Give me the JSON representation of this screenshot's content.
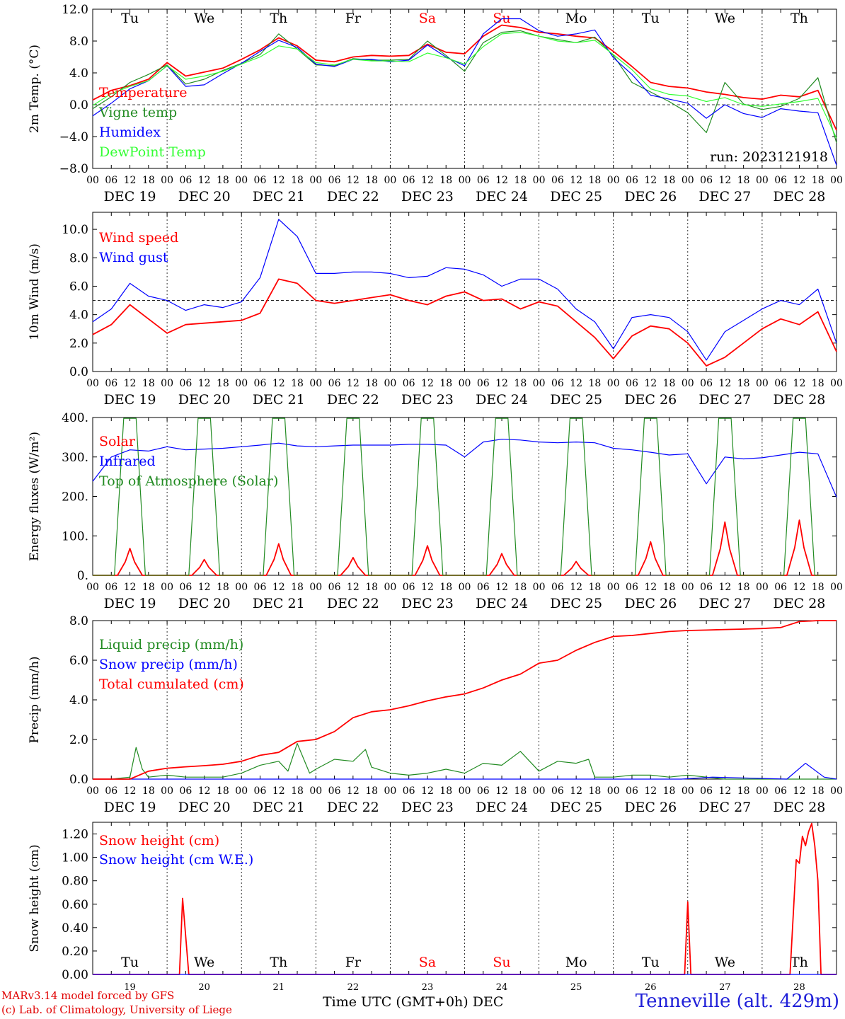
{
  "meta": {
    "run_label": "run: 2023121918"
  },
  "colors": {
    "red": "#ff0000",
    "green": "#228B22",
    "blue": "#0000ff",
    "lime": "#33ff33",
    "weekend": "#ff0000",
    "station": "#1f1fd8"
  },
  "weekdays": [
    {
      "label": "Tu",
      "weekend": false
    },
    {
      "label": "We",
      "weekend": false
    },
    {
      "label": "Th",
      "weekend": false
    },
    {
      "label": "Fr",
      "weekend": false
    },
    {
      "label": "Sa",
      "weekend": true
    },
    {
      "label": "Su",
      "weekend": true
    },
    {
      "label": "Mo",
      "weekend": false
    },
    {
      "label": "Tu",
      "weekend": false
    },
    {
      "label": "We",
      "weekend": false
    },
    {
      "label": "Th",
      "weekend": false
    }
  ],
  "dates": [
    "DEC 19",
    "DEC 20",
    "DEC 21",
    "DEC 22",
    "DEC 23",
    "DEC 24",
    "DEC 25",
    "DEC 26",
    "DEC 27",
    "DEC 28"
  ],
  "day_numbers": [
    "19",
    "20",
    "21",
    "22",
    "23",
    "24",
    "25",
    "26",
    "27",
    "28"
  ],
  "hour_labels": [
    "00",
    "06",
    "12",
    "18"
  ],
  "hour_labels_last": "00",
  "footer": {
    "credit_line1": "MARv3.14 model forced by GFS",
    "credit_line2": "(c) Lab. of Climatology, University of Liege",
    "x_title": "Time UTC (GMT+0h) DEC",
    "station": "Tenneville (alt. 429m)"
  },
  "chart_data": [
    {
      "type": "line",
      "panel": "temperature",
      "ylabel": "2m Temp. (°C)",
      "ylim": [
        -8,
        12
      ],
      "yticks": [
        "12.0",
        "8.0",
        "4.0",
        "0.0",
        "−4.0",
        "−8.0"
      ],
      "ytick_values": [
        12,
        8,
        4,
        0,
        -4,
        -8
      ],
      "reference_line": 0,
      "x_unit": "hours since 2023-12-19 00 UTC",
      "series": [
        {
          "name": "Temperature",
          "color": "red",
          "x": [
            0,
            6,
            12,
            18,
            24,
            30,
            36,
            42,
            48,
            54,
            60,
            66,
            72,
            78,
            84,
            90,
            96,
            102,
            108,
            114,
            120,
            126,
            132,
            138,
            144,
            150,
            156,
            162,
            168,
            174,
            180,
            186,
            192,
            198,
            204,
            210,
            216,
            222,
            228,
            234,
            240
          ],
          "y": [
            0.6,
            1.8,
            2.4,
            3.2,
            5.3,
            3.6,
            4.1,
            4.6,
            5.7,
            6.9,
            8.4,
            7.4,
            5.6,
            5.4,
            6.0,
            6.2,
            6.1,
            6.2,
            7.6,
            6.6,
            6.4,
            8.6,
            10.0,
            9.7,
            9.1,
            8.9,
            8.6,
            8.4,
            6.7,
            4.8,
            2.8,
            2.3,
            2.1,
            1.6,
            1.3,
            0.9,
            0.7,
            1.2,
            1.0,
            1.8,
            -3.2
          ]
        },
        {
          "name": "Vigne temp",
          "color": "green",
          "x": [
            0,
            6,
            12,
            18,
            24,
            30,
            36,
            42,
            48,
            54,
            60,
            66,
            72,
            78,
            84,
            90,
            96,
            102,
            108,
            114,
            120,
            126,
            132,
            138,
            144,
            150,
            156,
            162,
            168,
            174,
            180,
            186,
            192,
            198,
            204,
            210,
            216,
            222,
            228,
            234,
            240
          ],
          "y": [
            -0.5,
            1.0,
            2.8,
            3.8,
            5.0,
            2.6,
            3.2,
            4.3,
            5.2,
            6.3,
            8.9,
            7.0,
            5.0,
            4.9,
            5.8,
            5.6,
            5.6,
            5.7,
            8.0,
            6.2,
            4.2,
            7.8,
            9.1,
            9.3,
            8.6,
            8.2,
            7.8,
            8.5,
            6.2,
            2.8,
            1.6,
            0.4,
            -1.0,
            -3.5,
            2.8,
            0.1,
            -0.6,
            -0.2,
            0.8,
            3.4,
            -4.8
          ]
        },
        {
          "name": "Humidex",
          "color": "blue",
          "x": [
            0,
            6,
            12,
            18,
            24,
            30,
            36,
            42,
            48,
            54,
            60,
            66,
            72,
            78,
            84,
            90,
            96,
            102,
            108,
            114,
            120,
            126,
            132,
            138,
            144,
            150,
            156,
            162,
            168,
            174,
            180,
            186,
            192,
            198,
            204,
            210,
            216,
            222,
            228,
            234,
            240
          ],
          "y": [
            -1.4,
            0.2,
            2.0,
            3.0,
            4.9,
            2.3,
            2.5,
            3.9,
            5.2,
            6.7,
            8.1,
            7.2,
            5.1,
            4.8,
            5.7,
            5.7,
            5.4,
            5.6,
            7.5,
            6.0,
            4.9,
            8.9,
            10.8,
            10.8,
            9.3,
            8.6,
            8.9,
            9.4,
            5.9,
            3.8,
            1.2,
            0.7,
            0.2,
            -1.7,
            0.0,
            -1.1,
            -1.6,
            -0.5,
            -0.8,
            -1.0,
            -7.6
          ]
        },
        {
          "name": "DewPoint Temp",
          "color": "lime",
          "x": [
            0,
            6,
            12,
            18,
            24,
            30,
            36,
            42,
            48,
            54,
            60,
            66,
            72,
            78,
            84,
            90,
            96,
            102,
            108,
            114,
            120,
            126,
            132,
            138,
            144,
            150,
            156,
            162,
            168,
            174,
            180,
            186,
            192,
            198,
            204,
            210,
            216,
            222,
            228,
            234,
            240
          ],
          "y": [
            -0.1,
            1.4,
            2.3,
            3.0,
            4.9,
            3.2,
            3.6,
            4.2,
            5.1,
            6.0,
            7.4,
            7.0,
            5.3,
            5.0,
            5.7,
            5.5,
            5.5,
            5.4,
            6.5,
            5.9,
            5.1,
            7.3,
            8.9,
            9.1,
            8.6,
            8.0,
            7.8,
            8.1,
            6.3,
            4.4,
            2.0,
            1.3,
            1.1,
            0.4,
            0.9,
            0.0,
            -0.2,
            0.1,
            0.4,
            0.8,
            -4.2
          ]
        }
      ]
    },
    {
      "type": "line",
      "panel": "wind",
      "ylabel": "10m Wind (m/s)",
      "ylim": [
        0,
        11.2
      ],
      "yticks": [
        "10.0",
        "8.0",
        "6.0",
        "4.0",
        "2.0",
        "0.0"
      ],
      "ytick_values": [
        10,
        8,
        6,
        4,
        2,
        0
      ],
      "reference_line": 5,
      "x_unit": "hours since 2023-12-19 00 UTC",
      "series": [
        {
          "name": "Wind speed",
          "color": "red",
          "x": [
            0,
            6,
            12,
            18,
            24,
            30,
            36,
            42,
            48,
            54,
            60,
            66,
            72,
            78,
            84,
            90,
            96,
            102,
            108,
            114,
            120,
            126,
            132,
            138,
            144,
            150,
            156,
            162,
            168,
            174,
            180,
            186,
            192,
            198,
            204,
            210,
            216,
            222,
            228,
            234,
            240
          ],
          "y": [
            2.6,
            3.3,
            4.7,
            3.7,
            2.7,
            3.3,
            3.4,
            3.5,
            3.6,
            4.1,
            6.5,
            6.2,
            5.0,
            4.8,
            5.0,
            5.2,
            5.4,
            5.0,
            4.7,
            5.3,
            5.6,
            5.0,
            5.1,
            4.4,
            4.9,
            4.6,
            3.5,
            2.4,
            0.9,
            2.5,
            3.2,
            3.0,
            2.0,
            0.4,
            1.0,
            2.0,
            3.0,
            3.7,
            3.3,
            4.2,
            1.4
          ]
        },
        {
          "name": "Wind gust",
          "color": "blue",
          "x": [
            0,
            6,
            12,
            18,
            24,
            30,
            36,
            42,
            48,
            54,
            60,
            66,
            72,
            78,
            84,
            90,
            96,
            102,
            108,
            114,
            120,
            126,
            132,
            138,
            144,
            150,
            156,
            162,
            168,
            174,
            180,
            186,
            192,
            198,
            204,
            210,
            216,
            222,
            228,
            234,
            240
          ],
          "y": [
            3.5,
            4.4,
            6.2,
            5.3,
            5.0,
            4.3,
            4.7,
            4.5,
            4.9,
            6.6,
            10.7,
            9.5,
            6.9,
            6.9,
            7.0,
            7.0,
            6.9,
            6.6,
            6.7,
            7.3,
            7.2,
            6.8,
            6.0,
            6.5,
            6.5,
            5.8,
            4.4,
            3.5,
            1.6,
            3.8,
            4.0,
            3.8,
            2.8,
            0.8,
            2.8,
            3.6,
            4.4,
            5.0,
            4.7,
            5.8,
            2.0
          ]
        }
      ]
    },
    {
      "type": "line",
      "panel": "energy",
      "ylabel": "Energy fluxes (W/m²)",
      "ylim": [
        0,
        400
      ],
      "yticks": [
        "400.",
        "300.",
        "200.",
        "100.",
        "0."
      ],
      "ytick_values": [
        400,
        300,
        200,
        100,
        0
      ],
      "x_unit": "hours since 2023-12-19 00 UTC",
      "series": [
        {
          "name": "Solar",
          "color": "red",
          "solar_peaks": [
            68,
            40,
            80,
            45,
            75,
            55,
            35,
            85,
            135,
            140
          ]
        },
        {
          "name": "Infrared",
          "color": "blue",
          "x": [
            0,
            6,
            12,
            18,
            24,
            30,
            36,
            42,
            48,
            54,
            60,
            66,
            72,
            78,
            84,
            90,
            96,
            102,
            108,
            114,
            120,
            126,
            132,
            138,
            144,
            150,
            156,
            162,
            168,
            174,
            180,
            186,
            192,
            198,
            204,
            210,
            216,
            222,
            228,
            234,
            240
          ],
          "y": [
            238,
            300,
            318,
            315,
            326,
            318,
            320,
            322,
            326,
            330,
            335,
            328,
            326,
            328,
            330,
            330,
            330,
            332,
            332,
            330,
            300,
            338,
            345,
            343,
            338,
            336,
            338,
            336,
            322,
            318,
            312,
            305,
            308,
            232,
            300,
            295,
            298,
            305,
            312,
            308,
            198
          ]
        },
        {
          "name": "Top of Atmosphere (Solar)",
          "color": "green",
          "toa_peak": 398
        }
      ]
    },
    {
      "type": "line",
      "panel": "precip",
      "ylabel": "Precip (mm/h)",
      "ylim": [
        0,
        8
      ],
      "yticks": [
        "8.0",
        "6.0",
        "4.0",
        "2.0",
        "0.0"
      ],
      "ytick_values": [
        8,
        6,
        4,
        2,
        0
      ],
      "x_unit": "hours since 2023-12-19 00 UTC",
      "series": [
        {
          "name": "Liquid precip (mm/h)",
          "color": "green",
          "x": [
            0,
            6,
            12,
            14,
            16,
            18,
            24,
            30,
            36,
            42,
            48,
            54,
            60,
            63,
            66,
            70,
            72,
            78,
            84,
            88,
            90,
            96,
            102,
            108,
            114,
            120,
            126,
            132,
            138,
            144,
            150,
            156,
            160,
            162,
            168,
            174,
            180,
            186,
            192,
            198,
            204,
            210,
            216,
            222,
            228,
            234,
            240
          ],
          "y": [
            0,
            0,
            0.1,
            1.6,
            0.5,
            0.1,
            0.2,
            0.1,
            0.1,
            0.1,
            0.3,
            0.7,
            0.9,
            0.4,
            1.8,
            0.3,
            0.5,
            1.0,
            0.9,
            1.5,
            0.6,
            0.3,
            0.2,
            0.3,
            0.5,
            0.3,
            0.8,
            0.7,
            1.4,
            0.4,
            0.9,
            0.8,
            1.0,
            0.1,
            0.1,
            0.2,
            0.2,
            0.1,
            0.2,
            0.1,
            0,
            0,
            0,
            0,
            0,
            0,
            0
          ]
        },
        {
          "name": "Snow precip (mm/h)",
          "color": "blue",
          "x": [
            0,
            190,
            200,
            224,
            230,
            236,
            240
          ],
          "y": [
            0,
            0,
            0.1,
            0,
            0.8,
            0.1,
            0
          ]
        },
        {
          "name": "Total cumulated (cm)",
          "color": "red",
          "x": [
            0,
            12,
            18,
            24,
            30,
            36,
            42,
            48,
            54,
            60,
            66,
            72,
            78,
            84,
            90,
            96,
            102,
            108,
            114,
            120,
            126,
            132,
            138,
            144,
            150,
            156,
            162,
            168,
            174,
            180,
            186,
            192,
            198,
            204,
            210,
            216,
            222,
            228,
            234,
            240
          ],
          "y": [
            0,
            0,
            0.4,
            0.55,
            0.62,
            0.68,
            0.75,
            0.9,
            1.2,
            1.35,
            1.9,
            2.0,
            2.4,
            3.1,
            3.4,
            3.5,
            3.7,
            3.95,
            4.15,
            4.3,
            4.6,
            5.0,
            5.3,
            5.85,
            6.0,
            6.5,
            6.9,
            7.2,
            7.25,
            7.35,
            7.45,
            7.5,
            7.52,
            7.55,
            7.57,
            7.6,
            7.65,
            7.95,
            8.0,
            8.0
          ]
        }
      ]
    },
    {
      "type": "line",
      "panel": "snow",
      "ylabel": "Snow height (cm)",
      "ylim": [
        0,
        1.3
      ],
      "yticks": [
        "1.20",
        "1.00",
        "0.80",
        "0.60",
        "0.40",
        "0.20",
        "0.00"
      ],
      "ytick_values": [
        1.2,
        1.0,
        0.8,
        0.6,
        0.4,
        0.2,
        0.0
      ],
      "x_unit": "hours since 2023-12-19 00 UTC",
      "series": [
        {
          "name": "Snow height (cm)",
          "color": "red",
          "x": [
            0,
            28,
            29,
            31,
            32,
            191,
            192,
            193,
            194,
            225,
            227,
            228,
            229,
            230,
            231,
            232,
            233,
            234,
            235,
            240
          ],
          "y": [
            0,
            0,
            0.65,
            0,
            0,
            0,
            0.62,
            0,
            0,
            0,
            0.98,
            0.95,
            1.18,
            1.1,
            1.22,
            1.29,
            1.1,
            0.8,
            0,
            0
          ]
        },
        {
          "name": "Snow height (cm W.E.)",
          "color": "blue",
          "x": [
            0,
            240
          ],
          "y": [
            0,
            0
          ]
        }
      ]
    }
  ]
}
